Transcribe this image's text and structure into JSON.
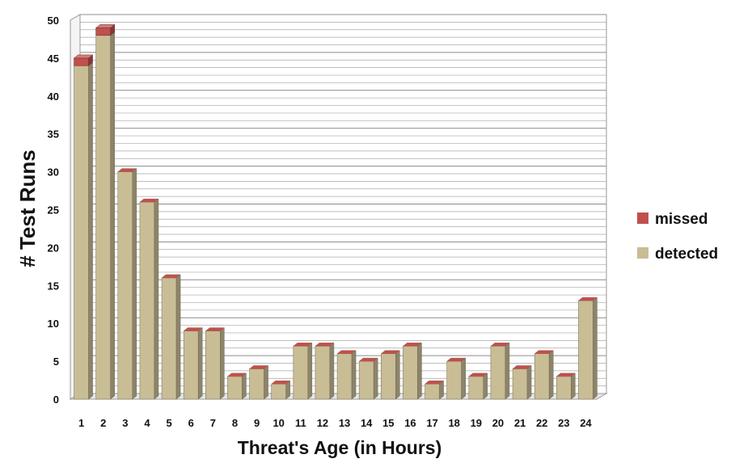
{
  "chart_data": {
    "type": "bar",
    "stacked": true,
    "categories": [
      "1",
      "2",
      "3",
      "4",
      "5",
      "6",
      "7",
      "8",
      "9",
      "10",
      "11",
      "12",
      "13",
      "14",
      "15",
      "16",
      "17",
      "18",
      "19",
      "20",
      "21",
      "22",
      "23",
      "24"
    ],
    "series": [
      {
        "name": "detected",
        "color": "#c9bd96",
        "values": [
          44,
          48,
          30,
          26,
          16,
          9,
          9,
          3,
          4,
          2,
          7,
          7,
          6,
          5,
          6,
          7,
          2,
          5,
          3,
          7,
          4,
          6,
          3,
          13
        ]
      },
      {
        "name": "missed",
        "color": "#c0504d",
        "values": [
          1,
          1,
          0,
          0,
          0,
          0,
          0,
          0,
          0,
          0,
          0,
          0,
          0,
          0,
          0,
          0,
          0,
          0,
          0,
          0,
          0,
          0,
          0,
          0
        ]
      }
    ],
    "xlabel": "Threat's Age (in Hours)",
    "ylabel": "# Test Runs",
    "ylim": [
      0,
      50
    ],
    "yticks": [
      0,
      5,
      10,
      15,
      20,
      25,
      30,
      35,
      40,
      45,
      50
    ],
    "grid": true,
    "legend_position": "right"
  }
}
